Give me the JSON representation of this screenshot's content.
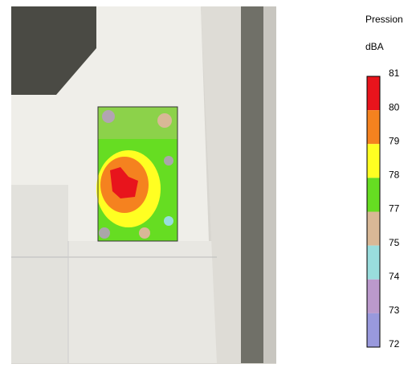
{
  "legend": {
    "title": "Pression",
    "unit": "dBA",
    "levels": [
      81,
      80,
      79,
      78,
      77,
      75,
      74,
      73,
      72
    ],
    "colors": [
      "#e8141c",
      "#f5821f",
      "#ffff22",
      "#66dd22",
      "#d9b896",
      "#99dddd",
      "#bb99cc",
      "#9999dd"
    ]
  }
}
